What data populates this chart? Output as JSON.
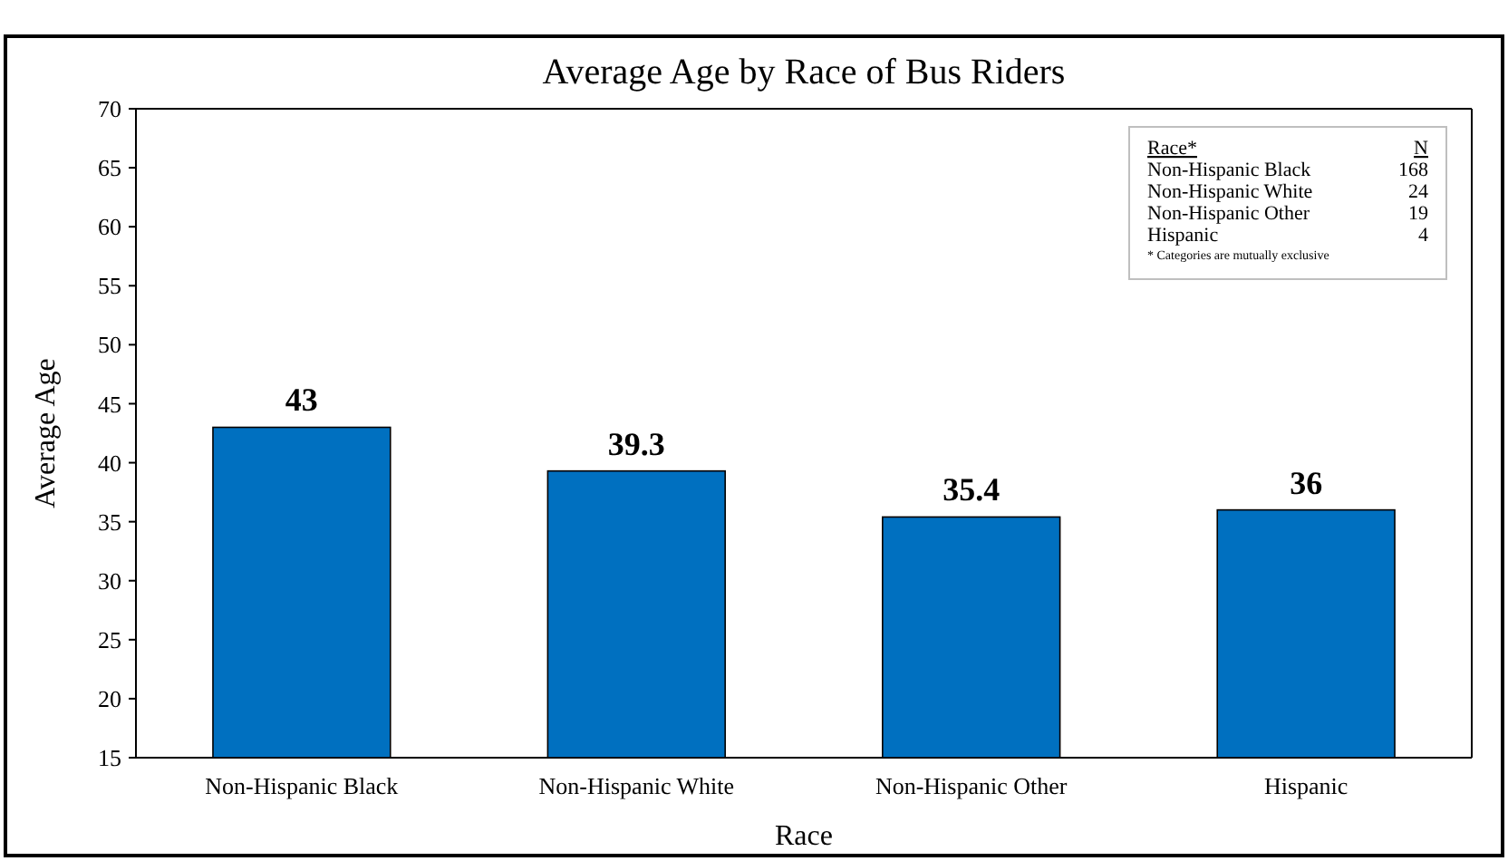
{
  "chart_data": {
    "type": "bar",
    "title": "Average Age by Race of Bus Riders",
    "xlabel": "Race",
    "ylabel": "Average Age",
    "categories": [
      "Non-Hispanic Black",
      "Non-Hispanic White",
      "Non-Hispanic Other",
      "Hispanic"
    ],
    "values": [
      43,
      39.3,
      35.4,
      36
    ],
    "color": "#0070c0",
    "ylim": [
      15,
      70
    ],
    "yticks": [
      15,
      20,
      25,
      30,
      35,
      40,
      45,
      50,
      55,
      60,
      65,
      70
    ],
    "grid": false,
    "data_labels": true,
    "annotations": [
      "Race*",
      "N",
      "Non-Hispanic Black",
      "168",
      "Non-Hispanic White",
      "24",
      "Non-Hispanic Other",
      "19",
      "Hispanic",
      "4",
      "* Categories are mutually exclusive"
    ]
  }
}
